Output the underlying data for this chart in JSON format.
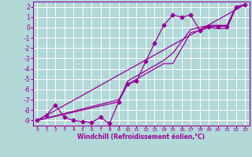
{
  "xlabel": "Windchill (Refroidissement éolien,°C)",
  "xlim": [
    -0.5,
    23.5
  ],
  "ylim": [
    -9.5,
    2.5
  ],
  "yticks": [
    2,
    1,
    0,
    -1,
    -2,
    -3,
    -4,
    -5,
    -6,
    -7,
    -8,
    -9
  ],
  "xticks": [
    0,
    1,
    2,
    3,
    4,
    5,
    6,
    7,
    8,
    9,
    10,
    11,
    12,
    13,
    14,
    15,
    16,
    17,
    18,
    19,
    20,
    21,
    22,
    23
  ],
  "bg_color": "#b2d8d8",
  "line_color": "#990099",
  "grid_color": "#ffffff",
  "line1_x": [
    0,
    1,
    2,
    3,
    4,
    5,
    6,
    7,
    8,
    9,
    10,
    11,
    12,
    13,
    14,
    15,
    16,
    17,
    18,
    19,
    20,
    21,
    22,
    23
  ],
  "line1_y": [
    -9.0,
    -8.5,
    -7.5,
    -8.7,
    -9.0,
    -9.1,
    -9.2,
    -8.7,
    -9.3,
    -7.2,
    -5.5,
    -5.2,
    -3.3,
    -1.5,
    0.2,
    1.2,
    1.0,
    1.2,
    -0.3,
    0.1,
    0.1,
    0.1,
    2.0,
    2.2
  ],
  "line2_x": [
    0,
    23
  ],
  "line2_y": [
    -9.0,
    2.2
  ],
  "line3_x": [
    0,
    9,
    10,
    14,
    15,
    17,
    18,
    19,
    20,
    21,
    22,
    23
  ],
  "line3_y": [
    -9.0,
    -7.0,
    -5.5,
    -3.5,
    -3.5,
    -0.5,
    -0.3,
    0.0,
    -0.1,
    -0.1,
    1.9,
    2.2
  ],
  "line4_x": [
    0,
    9,
    10,
    14,
    15,
    17,
    18,
    19,
    20,
    21,
    22,
    23
  ],
  "line4_y": [
    -9.0,
    -7.2,
    -5.2,
    -3.2,
    -2.5,
    -0.2,
    0.0,
    0.2,
    0.2,
    0.2,
    2.0,
    2.2
  ]
}
